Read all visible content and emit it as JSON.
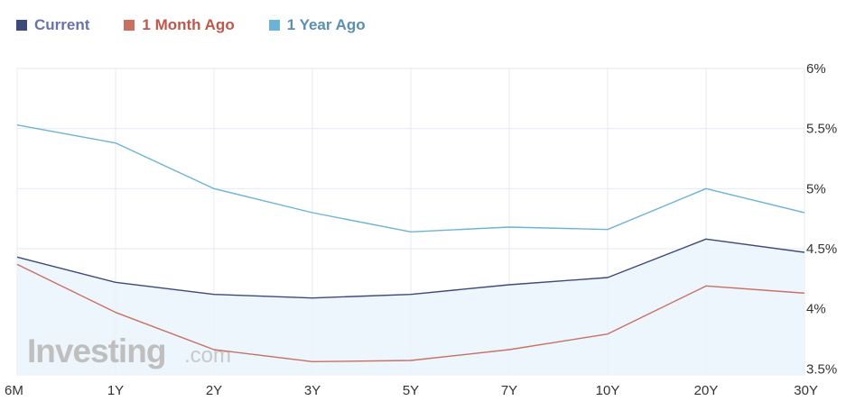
{
  "legend": [
    {
      "name": "Current",
      "color": "#3c4a7a",
      "text_color": "#6a72ad"
    },
    {
      "name": "1 Month Ago",
      "color": "#c97063",
      "text_color": "#c0574a"
    },
    {
      "name": "1 Year Ago",
      "color": "#6db3d6",
      "text_color": "#5a8fb0"
    }
  ],
  "watermark": {
    "brand": "Investing",
    "suffix": ".com"
  },
  "chart_data": {
    "type": "line",
    "categories": [
      "6M",
      "1Y",
      "2Y",
      "3Y",
      "5Y",
      "7Y",
      "10Y",
      "20Y",
      "30Y"
    ],
    "series": [
      {
        "name": "Current",
        "color": "#3c4a7a",
        "fill": true,
        "values": [
          4.43,
          4.22,
          4.12,
          4.09,
          4.12,
          4.2,
          4.26,
          4.58,
          4.47
        ]
      },
      {
        "name": "1 Month Ago",
        "color": "#c97063",
        "fill": false,
        "values": [
          4.37,
          3.97,
          3.66,
          3.56,
          3.57,
          3.66,
          3.79,
          4.19,
          4.13
        ]
      },
      {
        "name": "1 Year Ago",
        "color": "#6db3d6",
        "fill": false,
        "values": [
          5.53,
          5.38,
          5.0,
          4.8,
          4.64,
          4.68,
          4.66,
          5.0,
          4.8
        ]
      }
    ],
    "ylim": [
      3.45,
      6.0
    ],
    "yticks": [
      3.5,
      4,
      4.5,
      5,
      5.5,
      6
    ],
    "ytick_labels": [
      "3.5%",
      "4%",
      "4.5%",
      "5%",
      "5.5%",
      "6%"
    ],
    "axis_position": "right",
    "grid": true,
    "legend_position": "top-left"
  }
}
